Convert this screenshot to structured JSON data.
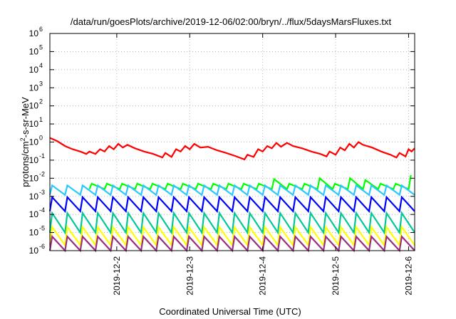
{
  "chart_data": {
    "type": "line",
    "title": "/data/run/goesPlots/archive/2019-12-06/02:00/bryn/../flux/5daysMarsFluxes.txt",
    "xlabel": "Coordinated Universal Time (UTC)",
    "ylabel": "protons/cm²-s-sr-MeV",
    "ylabel_parts": {
      "pre": "protons/cm",
      "sup": "2",
      "post": "-s-sr-MeV"
    },
    "x_tick_labels": [
      "2019-12-2",
      "2019-12-3",
      "2019-12-4",
      "2019-12-5",
      "2019-12-6"
    ],
    "y_scale": "log",
    "ylim": [
      1e-06,
      1000000.0
    ],
    "y_ticks": [
      {
        "base": "10",
        "exp": "-6"
      },
      {
        "base": "10",
        "exp": "-5"
      },
      {
        "base": "10",
        "exp": "-4"
      },
      {
        "base": "10",
        "exp": "-3"
      },
      {
        "base": "10",
        "exp": "-2"
      },
      {
        "base": "10",
        "exp": "-1"
      },
      {
        "base": "10",
        "exp": "0"
      },
      {
        "base": "10",
        "exp": "1"
      },
      {
        "base": "10",
        "exp": "2"
      },
      {
        "base": "10",
        "exp": "3"
      },
      {
        "base": "10",
        "exp": "4"
      },
      {
        "base": "10",
        "exp": "5"
      },
      {
        "base": "10",
        "exp": "6"
      }
    ],
    "xlim": [
      "2019-12-01T02:00",
      "2019-12-06T02:00"
    ],
    "x_ticks": [
      "2019-12-02",
      "2019-12-03",
      "2019-12-04",
      "2019-12-05",
      "2019-12-06"
    ],
    "grid": true,
    "series": [
      {
        "color": "#ff0000",
        "style": "line",
        "points": [
          [
            "2019-12-01T02:00",
            1.7
          ],
          [
            "2019-12-01T04:30",
            1.1
          ],
          [
            "2019-12-01T07:00",
            0.6
          ],
          [
            "2019-12-01T09:30",
            0.4
          ],
          [
            "2019-12-01T12:00",
            0.3
          ],
          [
            "2019-12-01T14:00",
            0.22
          ],
          [
            "2019-12-01T15:00",
            0.3
          ],
          [
            "2019-12-01T17:00",
            0.22
          ],
          [
            "2019-12-01T18:30",
            0.4
          ],
          [
            "2019-12-01T20:00",
            0.3
          ],
          [
            "2019-12-01T21:30",
            0.6
          ],
          [
            "2019-12-01T23:00",
            0.4
          ],
          [
            "2019-12-02T00:30",
            0.8
          ],
          [
            "2019-12-02T02:00",
            0.5
          ],
          [
            "2019-12-02T03:30",
            0.7
          ],
          [
            "2019-12-02T06:00",
            0.45
          ],
          [
            "2019-12-02T09:00",
            0.3
          ],
          [
            "2019-12-02T12:00",
            0.22
          ],
          [
            "2019-12-02T15:00",
            0.14
          ],
          [
            "2019-12-02T16:00",
            0.25
          ],
          [
            "2019-12-02T18:00",
            0.15
          ],
          [
            "2019-12-02T19:30",
            0.4
          ],
          [
            "2019-12-02T21:00",
            0.3
          ],
          [
            "2019-12-02T22:30",
            0.6
          ],
          [
            "2019-12-03T00:00",
            0.4
          ],
          [
            "2019-12-03T01:30",
            0.8
          ],
          [
            "2019-12-03T03:30",
            0.5
          ],
          [
            "2019-12-03T06:00",
            0.55
          ],
          [
            "2019-12-03T09:00",
            0.35
          ],
          [
            "2019-12-03T12:00",
            0.25
          ],
          [
            "2019-12-03T15:00",
            0.17
          ],
          [
            "2019-12-03T18:00",
            0.11
          ],
          [
            "2019-12-03T19:00",
            0.2
          ],
          [
            "2019-12-03T21:00",
            0.15
          ],
          [
            "2019-12-03T22:30",
            0.4
          ],
          [
            "2019-12-04T00:00",
            0.3
          ],
          [
            "2019-12-04T01:30",
            0.6
          ],
          [
            "2019-12-04T03:00",
            0.45
          ],
          [
            "2019-12-04T04:30",
            0.9
          ],
          [
            "2019-12-04T06:00",
            0.55
          ],
          [
            "2019-12-04T08:00",
            0.9
          ],
          [
            "2019-12-04T10:00",
            0.6
          ],
          [
            "2019-12-04T13:00",
            0.45
          ],
          [
            "2019-12-04T16:00",
            0.3
          ],
          [
            "2019-12-04T19:00",
            0.22
          ],
          [
            "2019-12-04T21:00",
            0.16
          ],
          [
            "2019-12-04T22:00",
            0.3
          ],
          [
            "2019-12-05T00:00",
            0.2
          ],
          [
            "2019-12-05T01:30",
            0.5
          ],
          [
            "2019-12-05T03:00",
            0.35
          ],
          [
            "2019-12-05T04:30",
            0.8
          ],
          [
            "2019-12-05T06:00",
            0.5
          ],
          [
            "2019-12-05T07:30",
            1.0
          ],
          [
            "2019-12-05T09:00",
            0.7
          ],
          [
            "2019-12-05T12:00",
            0.5
          ],
          [
            "2019-12-05T15:00",
            0.3
          ],
          [
            "2019-12-05T18:00",
            0.2
          ],
          [
            "2019-12-05T20:00",
            0.14
          ],
          [
            "2019-12-05T21:00",
            0.25
          ],
          [
            "2019-12-05T23:00",
            0.16
          ],
          [
            "2019-12-06T00:00",
            0.4
          ],
          [
            "2019-12-06T01:00",
            0.3
          ],
          [
            "2019-12-06T02:00",
            0.45
          ]
        ]
      },
      {
        "color": "#00ff00",
        "style": "sawtooth",
        "start": "2019-12-01T15:00",
        "end": "2019-12-06T02:00",
        "period_hours": 5,
        "low": 0.0025,
        "high": 0.005,
        "peaks": [
          [
            "2019-12-04T04:00",
            0.009
          ],
          [
            "2019-12-04T18:00",
            0.01
          ],
          [
            "2019-12-05T04:00",
            0.01
          ],
          [
            "2019-12-05T09:00",
            0.008
          ],
          [
            "2019-12-06T01:00",
            0.015
          ]
        ]
      },
      {
        "color": "#2bc8ff",
        "style": "sawtooth",
        "start": "2019-12-01T02:00",
        "end": "2019-12-06T02:00",
        "period_hours": 5,
        "low": 0.0012,
        "high": 0.004
      },
      {
        "color": "#0000ff",
        "style": "sawtooth",
        "start": "2019-12-01T02:00",
        "end": "2019-12-06T02:00",
        "period_hours": 5,
        "low": 0.00015,
        "high": 0.0009
      },
      {
        "color": "#00c896",
        "style": "sawtooth",
        "start": "2019-12-01T02:00",
        "end": "2019-12-06T02:00",
        "period_hours": 5,
        "low": 1e-05,
        "high": 0.00012
      },
      {
        "color": "#ffff00",
        "style": "sawtooth",
        "start": "2019-12-01T02:00",
        "end": "2019-12-06T02:00",
        "period_hours": 5,
        "low": 2e-06,
        "high": 2e-05
      },
      {
        "color": "#9b2d82",
        "style": "sawtooth",
        "start": "2019-12-01T02:00",
        "end": "2019-12-06T02:00",
        "period_hours": 5,
        "low": 1e-06,
        "high": 6e-06
      }
    ]
  }
}
